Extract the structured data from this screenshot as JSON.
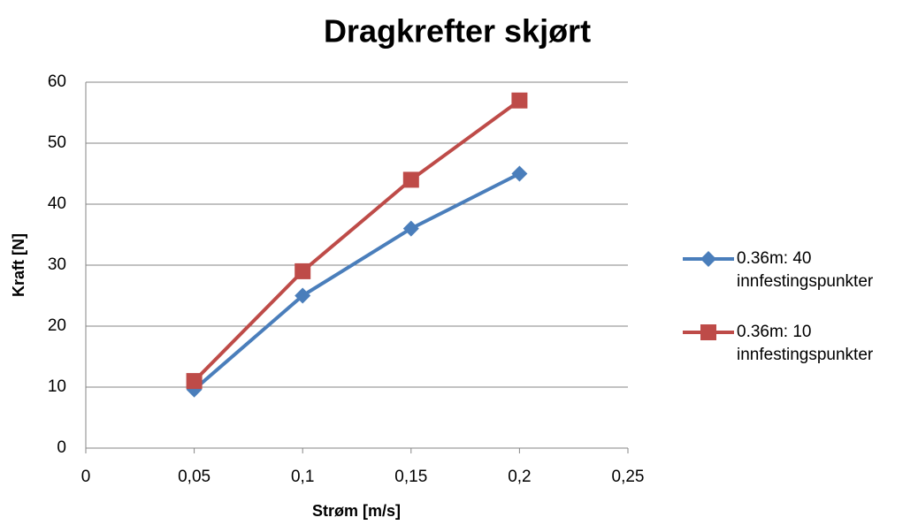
{
  "chart_data": {
    "type": "line",
    "title": "Dragkrefter skjørt",
    "xlabel": "Strøm [m/s]",
    "ylabel": "Kraft [N]",
    "x": [
      0.05,
      0.1,
      0.15,
      0.2
    ],
    "series": [
      {
        "name": "0.36m: 40 innfestingspunkter",
        "color": "#4a7ebb",
        "marker": "diamond",
        "values": [
          9.6,
          25,
          36,
          45
        ]
      },
      {
        "name": "0.36m: 10 innfestingspunkter",
        "color": "#be4b48",
        "marker": "square",
        "values": [
          11,
          29,
          44,
          57
        ]
      }
    ],
    "xlim": [
      0,
      0.25
    ],
    "xticks": [
      0,
      {
        "value": 0.05,
        "label": "0,05"
      },
      {
        "value": 0.1,
        "label": "0,1"
      },
      {
        "value": 0.15,
        "label": "0,15"
      },
      {
        "value": 0.2,
        "label": "0,2"
      },
      {
        "value": 0.25,
        "label": "0,25"
      }
    ],
    "ylim": [
      0,
      60
    ],
    "yticks": [
      0,
      10,
      20,
      30,
      40,
      50,
      60
    ],
    "grid": true,
    "legend": "right"
  }
}
